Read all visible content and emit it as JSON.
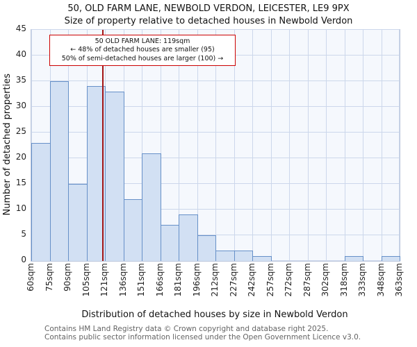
{
  "page": {
    "title_line1": "50, OLD FARM LANE, NEWBOLD VERDON, LEICESTER, LE9 9PX",
    "title_line2": "Size of property relative to detached houses in Newbold Verdon"
  },
  "annotation": {
    "line1": "50 OLD FARM LANE: 119sqm",
    "line2": "← 48% of detached houses are smaller (95)",
    "line3": "50% of semi-detached houses are larger (100) →",
    "border_color": "#cc0000"
  },
  "chart_data": {
    "type": "bar",
    "title": "50, OLD FARM LANE, NEWBOLD VERDON, LEICESTER, LE9 9PX — Size of property relative to detached houses in Newbold Verdon",
    "xlabel": "Distribution of detached houses by size in Newbold Verdon",
    "ylabel": "Number of detached properties",
    "categories": [
      "60sqm",
      "75sqm",
      "90sqm",
      "105sqm",
      "121sqm",
      "136sqm",
      "151sqm",
      "166sqm",
      "181sqm",
      "196sqm",
      "212sqm",
      "227sqm",
      "242sqm",
      "257sqm",
      "272sqm",
      "287sqm",
      "302sqm",
      "318sqm",
      "333sqm",
      "348sqm",
      "363sqm"
    ],
    "bin_edges_sqm": [
      60,
      75,
      90,
      105,
      121,
      136,
      151,
      166,
      181,
      196,
      212,
      227,
      242,
      257,
      272,
      287,
      302,
      318,
      333,
      348,
      363
    ],
    "values": [
      23,
      35,
      15,
      34,
      33,
      12,
      21,
      7,
      9,
      5,
      2,
      2,
      1,
      0,
      0,
      0,
      0,
      1,
      0,
      1
    ],
    "ylim": [
      0,
      45
    ],
    "yticks": [
      0,
      5,
      10,
      15,
      20,
      25,
      30,
      35,
      40,
      45
    ],
    "grid": true,
    "legend_position": "none",
    "marker": {
      "label": "50 OLD FARM LANE",
      "value_sqm": 119,
      "color": "#a31515"
    },
    "bar_fill": "#d2e0f3",
    "bar_border": "#6690c8"
  },
  "footer": {
    "line1": "Contains HM Land Registry data © Crown copyright and database right 2025.",
    "line2": "Contains public sector information licensed under the Open Government Licence v3.0."
  }
}
